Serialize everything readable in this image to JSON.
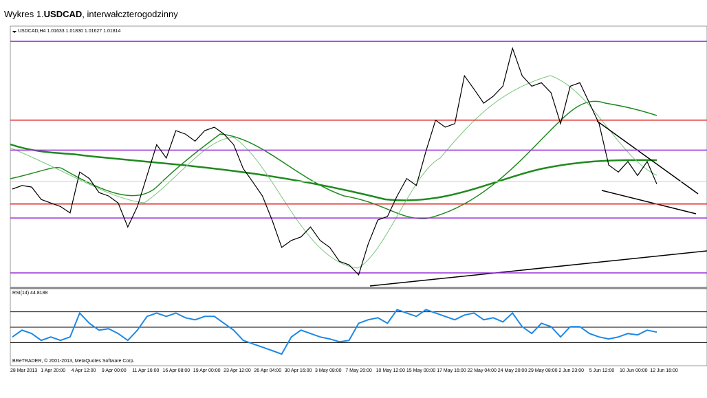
{
  "title_prefix": "Wykres 1.",
  "title_bold": "USDCAD",
  "title_suffix": ", interwałczterogodzinny",
  "chart_data": [
    {
      "type": "line",
      "header": "USDCAD,H4 1.01633 1.01830 1.01627 1.01814",
      "color": "#000000",
      "ylim": [
        0.999,
        1.049
      ],
      "levels": [
        {
          "value": 1.0483,
          "color": "#9b30d9"
        },
        {
          "value": 1.0325,
          "color": "#e02020"
        },
        {
          "value": 1.0265,
          "color": "#9b30d9"
        },
        {
          "value": 1.0157,
          "color": "#e02020"
        },
        {
          "value": 1.0129,
          "color": "#9b30d9"
        },
        {
          "value": 1.0019,
          "color": "#9b30d9"
        }
      ],
      "values": [
        1.0187,
        1.0194,
        1.0191,
        1.0166,
        1.0159,
        1.0152,
        1.0139,
        1.0221,
        1.0208,
        1.018,
        1.0173,
        1.0159,
        1.0111,
        1.0152,
        1.0214,
        1.0276,
        1.0249,
        1.0304,
        1.0297,
        1.0283,
        1.0304,
        1.0311,
        1.0297,
        1.0276,
        1.0228,
        1.0201,
        1.0173,
        1.0125,
        1.007,
        1.0084,
        1.0091,
        1.0111,
        1.0084,
        1.007,
        1.0042,
        1.0035,
        1.0015,
        1.0077,
        1.0125,
        1.0132,
        1.0173,
        1.0208,
        1.0194,
        1.0263,
        1.0325,
        1.0311,
        1.0318,
        1.0414,
        1.0387,
        1.0359,
        1.0373,
        1.0393,
        1.0469,
        1.0414,
        1.0393,
        1.04,
        1.038,
        1.0318,
        1.0393,
        1.04,
        1.0359,
        1.0318,
        1.0235,
        1.0221,
        1.0242,
        1.0214,
        1.0242,
        1.0197
      ],
      "x_labels": [
        "28 Mar 2013",
        "1 Apr 20:00",
        "4 Apr 12:00",
        "9 Apr 00:00",
        "11 Apr 16:00",
        "16 Apr 08:00",
        "19 Apr 00:00",
        "23 Apr 12:00",
        "26 Apr 04:00",
        "30 Apr 16:00",
        "3 May 08:00",
        "7 May 20:00",
        "10 May 12:00",
        "15 May 00:00",
        "17 May 16:00",
        "22 May 04:00",
        "24 May 20:00",
        "29 May 08:00",
        "2 Jun 23:00",
        "5 Jun 12:00",
        "10 Jun 00:00",
        "12 Jun 16:00"
      ]
    },
    {
      "type": "line",
      "header": "RSI(14) 44.8188",
      "color": "#1e88e5",
      "ylim": [
        0,
        100
      ],
      "levels": [
        70,
        50,
        30
      ],
      "footer": "BReTRADER, © 2001-2013, MetaQuotes Software Corp.",
      "values": [
        37.3,
        46.2,
        41.8,
        32.9,
        37.3,
        32.9,
        37.3,
        68.4,
        55.1,
        46.2,
        48.0,
        41.8,
        32.9,
        46.2,
        64.0,
        68.4,
        64.0,
        68.4,
        62.2,
        59.6,
        64.0,
        64.0,
        55.1,
        46.2,
        32.9,
        28.4,
        24.0,
        19.6,
        15.1,
        37.3,
        46.2,
        41.8,
        37.3,
        34.7,
        31.1,
        32.9,
        55.1,
        59.6,
        62.2,
        55.1,
        72.9,
        68.4,
        64.0,
        72.9,
        68.4,
        64.0,
        59.6,
        65.8,
        68.4,
        59.6,
        62.2,
        56.9,
        68.4,
        50.7,
        41.8,
        55.1,
        50.7,
        37.3,
        50.7,
        50.7,
        41.8,
        37.3,
        34.7,
        37.3,
        41.8,
        40.0,
        46.2,
        43.6
      ]
    }
  ]
}
